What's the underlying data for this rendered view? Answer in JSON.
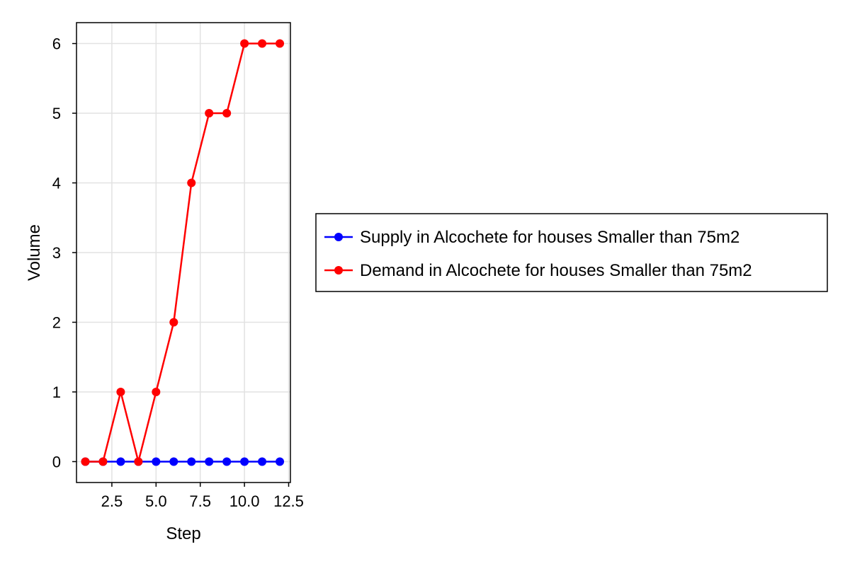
{
  "chart_data": {
    "type": "line",
    "xlabel": "Step",
    "ylabel": "Volume",
    "xlim": [
      0.5,
      12.6
    ],
    "ylim": [
      -0.3,
      6.3
    ],
    "xticks": [
      2.5,
      5.0,
      7.5,
      10.0,
      12.5
    ],
    "xtick_labels": [
      "2.5",
      "5.0",
      "7.5",
      "10.0",
      "12.5"
    ],
    "yticks": [
      0,
      1,
      2,
      3,
      4,
      5,
      6
    ],
    "ytick_labels": [
      "0",
      "1",
      "2",
      "3",
      "4",
      "5",
      "6"
    ],
    "grid": true,
    "legend_position": "right",
    "x": [
      1,
      2,
      3,
      4,
      5,
      6,
      7,
      8,
      9,
      10,
      11,
      12
    ],
    "series": [
      {
        "name": "Supply in Alcochete for houses Smaller than 75m2",
        "color": "#0000ff",
        "values": [
          0,
          0,
          0,
          0,
          0,
          0,
          0,
          0,
          0,
          0,
          0,
          0
        ]
      },
      {
        "name": "Demand in Alcochete for houses Smaller than 75m2",
        "color": "#ff0000",
        "values": [
          0,
          0,
          1,
          0,
          1,
          2,
          4,
          5,
          5,
          6,
          6,
          6
        ]
      }
    ]
  }
}
